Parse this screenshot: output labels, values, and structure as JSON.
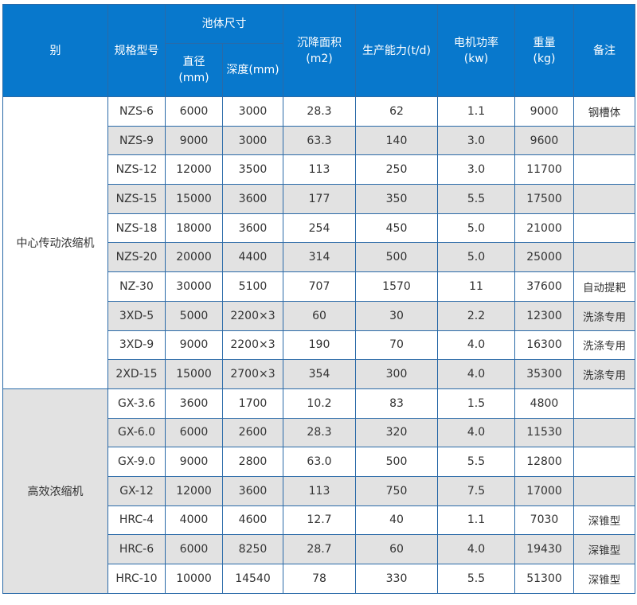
{
  "header": {
    "category": "别",
    "model": "规格型号",
    "tank_size": "池体尺寸",
    "diameter": "直径\n(mm)",
    "depth": "深度(mm)",
    "area": "沉降面积\n(m2)",
    "capacity": "生产能力(t/d)",
    "power": "电机功率\n(kw)",
    "weight": "重量\n(kg)",
    "remark": "备注"
  },
  "groups": [
    {
      "name": "中心传动浓缩机",
      "rows": [
        [
          "NZS-6",
          "6000",
          "3000",
          "28.3",
          "62",
          "1.1",
          "9000",
          "钢槽体"
        ],
        [
          "NZS-9",
          "9000",
          "3000",
          "63.3",
          "140",
          "3.0",
          "9600",
          ""
        ],
        [
          "NZS-12",
          "12000",
          "3500",
          "113",
          "250",
          "3.0",
          "11700",
          ""
        ],
        [
          "NZS-15",
          "15000",
          "3600",
          "177",
          "350",
          "5.5",
          "17500",
          ""
        ],
        [
          "NZS-18",
          "18000",
          "3600",
          "254",
          "450",
          "5.0",
          "21000",
          ""
        ],
        [
          "NZS-20",
          "20000",
          "4400",
          "314",
          "500",
          "5.0",
          "25000",
          ""
        ],
        [
          "NZ-30",
          "30000",
          "5100",
          "707",
          "1570",
          "11",
          "37600",
          "自动提耙"
        ],
        [
          "3XD-5",
          "5000",
          "2200×3",
          "60",
          "30",
          "2.2",
          "12300",
          "洗涤专用"
        ],
        [
          "3XD-9",
          "9000",
          "2200×3",
          "190",
          "70",
          "4.0",
          "16300",
          "洗涤专用"
        ],
        [
          "2XD-15",
          "15000",
          "2700×3",
          "354",
          "300",
          "4.0",
          "35300",
          "洗涤专用"
        ]
      ]
    },
    {
      "name": "高效浓缩机",
      "rows": [
        [
          "GX-3.6",
          "3600",
          "1700",
          "10.2",
          "83",
          "1.5",
          "4800",
          ""
        ],
        [
          "GX-6.0",
          "6000",
          "2600",
          "28.3",
          "320",
          "4.0",
          "11530",
          ""
        ],
        [
          "GX-9.0",
          "9000",
          "2800",
          "63.0",
          "500",
          "5.5",
          "12800",
          ""
        ],
        [
          "GX-12",
          "12000",
          "3600",
          "113",
          "750",
          "7.5",
          "17000",
          ""
        ],
        [
          "HRC-4",
          "4000",
          "4600",
          "12.7",
          "40",
          "1.1",
          "7030",
          "深锥型"
        ],
        [
          "HRC-6",
          "6000",
          "8250",
          "28.7",
          "60",
          "4.0",
          "19430",
          "深锥型"
        ],
        [
          "HRC-10",
          "10000",
          "14540",
          "78",
          "330",
          "5.5",
          "51300",
          "深锥型"
        ]
      ]
    }
  ],
  "colors": {
    "header_bg": "#0878cc",
    "border": "#2a6aa8",
    "alt_row": "#e2e2e2"
  }
}
